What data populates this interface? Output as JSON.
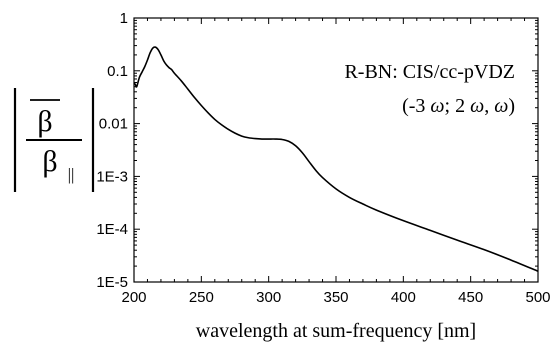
{
  "chart_data": {
    "type": "line",
    "title": "",
    "xlabel": "wavelength at sum-frequency [nm]",
    "ylabel": {
      "numerator": "β",
      "denominator": "β",
      "denominator_subscript": "||"
    },
    "xlim": [
      200,
      500
    ],
    "ylim": [
      1e-05,
      1
    ],
    "yscale": "log",
    "grid": false,
    "legend": "none",
    "line_color": "#000000",
    "x_ticks": [
      "200",
      "250",
      "300",
      "350",
      "400",
      "450",
      "500"
    ],
    "y_ticks": [
      "1E-5",
      "1E-4",
      "1E-3",
      "0.01",
      "0.1",
      "1"
    ],
    "annotations": {
      "line1": "R-BN: CIS/cc-pVDZ",
      "line2_open": "(-3 ",
      "line2_w1": "ω",
      "line2_mid": "; 2 ",
      "line2_w2": "ω",
      "line2_comma": ", ",
      "line2_w3": "ω",
      "line2_close": ")"
    },
    "series": [
      {
        "x": [
          200,
          201,
          202,
          204,
          206,
          208,
          210,
          212,
          214,
          216,
          218,
          220,
          222,
          224,
          226,
          228,
          230,
          235,
          240,
          245,
          250,
          255,
          260,
          265,
          270,
          275,
          280,
          285,
          290,
          295,
          300,
          305,
          310,
          315,
          320,
          325,
          330,
          335,
          340,
          350,
          360,
          370,
          380,
          400,
          420,
          440,
          460,
          480,
          500
        ],
        "y": [
          0.06,
          0.055,
          0.05,
          0.075,
          0.095,
          0.12,
          0.16,
          0.22,
          0.27,
          0.28,
          0.25,
          0.2,
          0.155,
          0.13,
          0.115,
          0.105,
          0.09,
          0.065,
          0.045,
          0.031,
          0.022,
          0.016,
          0.012,
          0.0095,
          0.0078,
          0.0066,
          0.0058,
          0.0054,
          0.0052,
          0.0051,
          0.0051,
          0.0051,
          0.005,
          0.0046,
          0.0038,
          0.0028,
          0.0019,
          0.0013,
          0.00095,
          0.00058,
          0.0004,
          0.0003,
          0.00023,
          0.000145,
          9.5e-05,
          6.2e-05,
          4.1e-05,
          2.6e-05,
          1.6e-05
        ]
      }
    ]
  }
}
